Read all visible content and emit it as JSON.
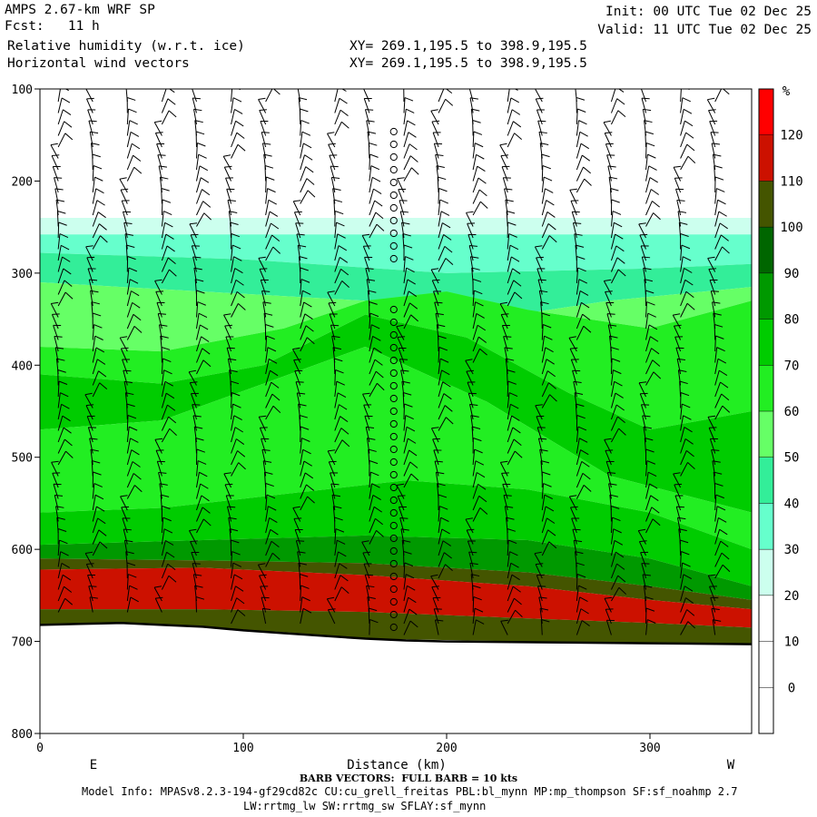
{
  "header": {
    "model": "AMPS 2.67-km WRF SP",
    "fcst": "Fcst:   11 h",
    "field1": "Relative humidity (w.r.t. ice)",
    "field2": "Horizontal wind vectors",
    "xy1": "XY= 269.1,195.5 to 398.9,195.5",
    "xy2": "XY= 269.1,195.5 to 398.9,195.5",
    "init": "Init: 00 UTC Tue 02 Dec 25",
    "valid": "Valid: 11 UTC Tue 02 Dec 25"
  },
  "footer": {
    "barb_note": "BARB VECTORS:  FULL BARB = 10 kts",
    "model_info": "Model Info: MPASv8.2.3-194-gf29cd82c CU:cu_grell_freitas PBL:bl_mynn MP:mp_thompson SF:sf_noahmp 2.7",
    "model_info2": "LW:rrtmg_lw SW:rrtmg_sw SFLAY:sf_mynn"
  },
  "chart_data": {
    "type": "heatmap",
    "title": "Relative humidity (w.r.t. ice)",
    "xlabel": "Distance (km)",
    "ylabel": "",
    "xlim": [
      0,
      350
    ],
    "ylim": [
      800,
      100
    ],
    "x_ticks": [
      0,
      100,
      200,
      300
    ],
    "y_ticks": [
      100,
      200,
      300,
      400,
      500,
      600,
      700,
      800
    ],
    "x_end_labels": {
      "left": "E",
      "right": "W"
    },
    "colorbar": {
      "unit": "%",
      "levels": [
        0,
        10,
        20,
        30,
        40,
        50,
        60,
        70,
        80,
        90,
        100,
        110,
        120
      ],
      "colors": [
        "#ffffff",
        "#ffffff",
        "#ffffff",
        "#ccffee",
        "#66ffcc",
        "#33ee99",
        "#66ff66",
        "#22ee22",
        "#00cc00",
        "#009900",
        "#006600",
        "#445500",
        "#cc1100",
        "#ff0000"
      ]
    },
    "bands": [
      {
        "name": "30-40",
        "color": "#ccffee",
        "top": [
          [
            0,
            240
          ],
          [
            350,
            240
          ]
        ],
        "bottom": [
          [
            0,
            258
          ],
          [
            350,
            258
          ]
        ]
      },
      {
        "name": "40-50",
        "color": "#66ffcc",
        "top": [
          [
            0,
            258
          ],
          [
            350,
            258
          ]
        ],
        "bottom": [
          [
            0,
            278
          ],
          [
            100,
            285
          ],
          [
            200,
            300
          ],
          [
            300,
            295
          ],
          [
            350,
            290
          ]
        ]
      },
      {
        "name": "50-60",
        "color": "#33ee99",
        "top": [
          [
            0,
            278
          ],
          [
            100,
            285
          ],
          [
            200,
            300
          ],
          [
            300,
            295
          ],
          [
            350,
            290
          ]
        ],
        "bottom": [
          [
            0,
            310
          ],
          [
            80,
            320
          ],
          [
            160,
            330
          ],
          [
            220,
            350
          ],
          [
            280,
            330
          ],
          [
            350,
            315
          ]
        ]
      },
      {
        "name": "60-70",
        "color": "#66ff66",
        "top": [
          [
            0,
            310
          ],
          [
            80,
            320
          ],
          [
            160,
            330
          ],
          [
            220,
            350
          ],
          [
            280,
            330
          ],
          [
            350,
            315
          ]
        ],
        "bottom": [
          [
            0,
            380
          ],
          [
            60,
            385
          ],
          [
            120,
            360
          ],
          [
            160,
            330
          ],
          [
            200,
            320
          ],
          [
            240,
            340
          ],
          [
            300,
            360
          ],
          [
            350,
            330
          ]
        ]
      },
      {
        "name": "70-80",
        "color": "#22ee22",
        "top": [
          [
            0,
            380
          ],
          [
            60,
            385
          ],
          [
            120,
            360
          ],
          [
            160,
            330
          ],
          [
            200,
            320
          ],
          [
            240,
            340
          ],
          [
            300,
            360
          ],
          [
            350,
            330
          ]
        ],
        "bottom": [
          [
            0,
            410
          ],
          [
            60,
            420
          ],
          [
            110,
            400
          ],
          [
            160,
            345
          ],
          [
            210,
            370
          ],
          [
            260,
            430
          ],
          [
            300,
            470
          ],
          [
            350,
            450
          ]
        ]
      },
      {
        "name": "80-90",
        "color": "#00cc00",
        "top": [
          [
            0,
            410
          ],
          [
            60,
            420
          ],
          [
            110,
            400
          ],
          [
            160,
            345
          ],
          [
            210,
            370
          ],
          [
            260,
            430
          ],
          [
            300,
            470
          ],
          [
            350,
            450
          ]
        ],
        "bottom": [
          [
            0,
            470
          ],
          [
            60,
            460
          ],
          [
            110,
            420
          ],
          [
            160,
            380
          ],
          [
            220,
            440
          ],
          [
            280,
            520
          ],
          [
            350,
            560
          ]
        ]
      },
      {
        "name": "70-80 lower",
        "color": "#22ee22",
        "top": [
          [
            0,
            470
          ],
          [
            60,
            460
          ],
          [
            110,
            420
          ],
          [
            160,
            380
          ],
          [
            220,
            440
          ],
          [
            280,
            520
          ],
          [
            350,
            560
          ]
        ],
        "bottom": [
          [
            0,
            560
          ],
          [
            60,
            555
          ],
          [
            120,
            540
          ],
          [
            180,
            525
          ],
          [
            240,
            535
          ],
          [
            300,
            560
          ],
          [
            350,
            600
          ]
        ]
      },
      {
        "name": "80-90 lower",
        "color": "#00cc00",
        "top": [
          [
            0,
            560
          ],
          [
            60,
            555
          ],
          [
            120,
            540
          ],
          [
            180,
            525
          ],
          [
            240,
            535
          ],
          [
            300,
            560
          ],
          [
            350,
            600
          ]
        ],
        "bottom": [
          [
            0,
            595
          ],
          [
            80,
            590
          ],
          [
            160,
            585
          ],
          [
            240,
            590
          ],
          [
            300,
            610
          ],
          [
            350,
            640
          ]
        ]
      },
      {
        "name": "90-100",
        "color": "#009900",
        "top": [
          [
            0,
            595
          ],
          [
            80,
            590
          ],
          [
            160,
            585
          ],
          [
            240,
            590
          ],
          [
            300,
            610
          ],
          [
            350,
            640
          ]
        ],
        "bottom": [
          [
            0,
            610
          ],
          [
            80,
            612
          ],
          [
            160,
            615
          ],
          [
            240,
            625
          ],
          [
            300,
            640
          ],
          [
            350,
            655
          ]
        ]
      },
      {
        "name": "100-110",
        "color": "#445500",
        "top": [
          [
            0,
            610
          ],
          [
            80,
            612
          ],
          [
            160,
            615
          ],
          [
            240,
            625
          ],
          [
            300,
            640
          ],
          [
            350,
            655
          ]
        ],
        "bottom": [
          [
            0,
            622
          ],
          [
            80,
            620
          ],
          [
            160,
            628
          ],
          [
            240,
            640
          ],
          [
            300,
            655
          ],
          [
            350,
            665
          ]
        ]
      },
      {
        "name": "110-120",
        "color": "#cc1100",
        "top": [
          [
            0,
            622
          ],
          [
            80,
            620
          ],
          [
            160,
            628
          ],
          [
            240,
            640
          ],
          [
            300,
            655
          ],
          [
            350,
            665
          ]
        ],
        "bottom": [
          [
            0,
            665
          ],
          [
            80,
            665
          ],
          [
            160,
            668
          ],
          [
            240,
            675
          ],
          [
            300,
            680
          ],
          [
            350,
            685
          ]
        ]
      },
      {
        "name": "100-110 base",
        "color": "#445500",
        "top": [
          [
            0,
            665
          ],
          [
            80,
            665
          ],
          [
            160,
            668
          ],
          [
            240,
            675
          ],
          [
            300,
            680
          ],
          [
            350,
            685
          ]
        ],
        "bottom": [
          [
            0,
            682
          ],
          [
            60,
            682
          ],
          [
            120,
            690
          ],
          [
            160,
            697
          ],
          [
            240,
            700
          ],
          [
            350,
            703
          ]
        ]
      }
    ],
    "terrain": [
      [
        0,
        682
      ],
      [
        20,
        681
      ],
      [
        40,
        680
      ],
      [
        60,
        682
      ],
      [
        80,
        684
      ],
      [
        100,
        688
      ],
      [
        120,
        691
      ],
      [
        140,
        694
      ],
      [
        160,
        697
      ],
      [
        180,
        699
      ],
      [
        200,
        700
      ],
      [
        250,
        701
      ],
      [
        300,
        702
      ],
      [
        350,
        703
      ]
    ],
    "barb_columns_km": [
      9,
      26,
      43,
      60,
      77,
      94,
      111,
      128,
      145,
      162,
      179,
      196,
      213,
      230,
      247,
      264,
      281,
      298,
      315,
      332
    ],
    "calm_column_km": 174
  }
}
